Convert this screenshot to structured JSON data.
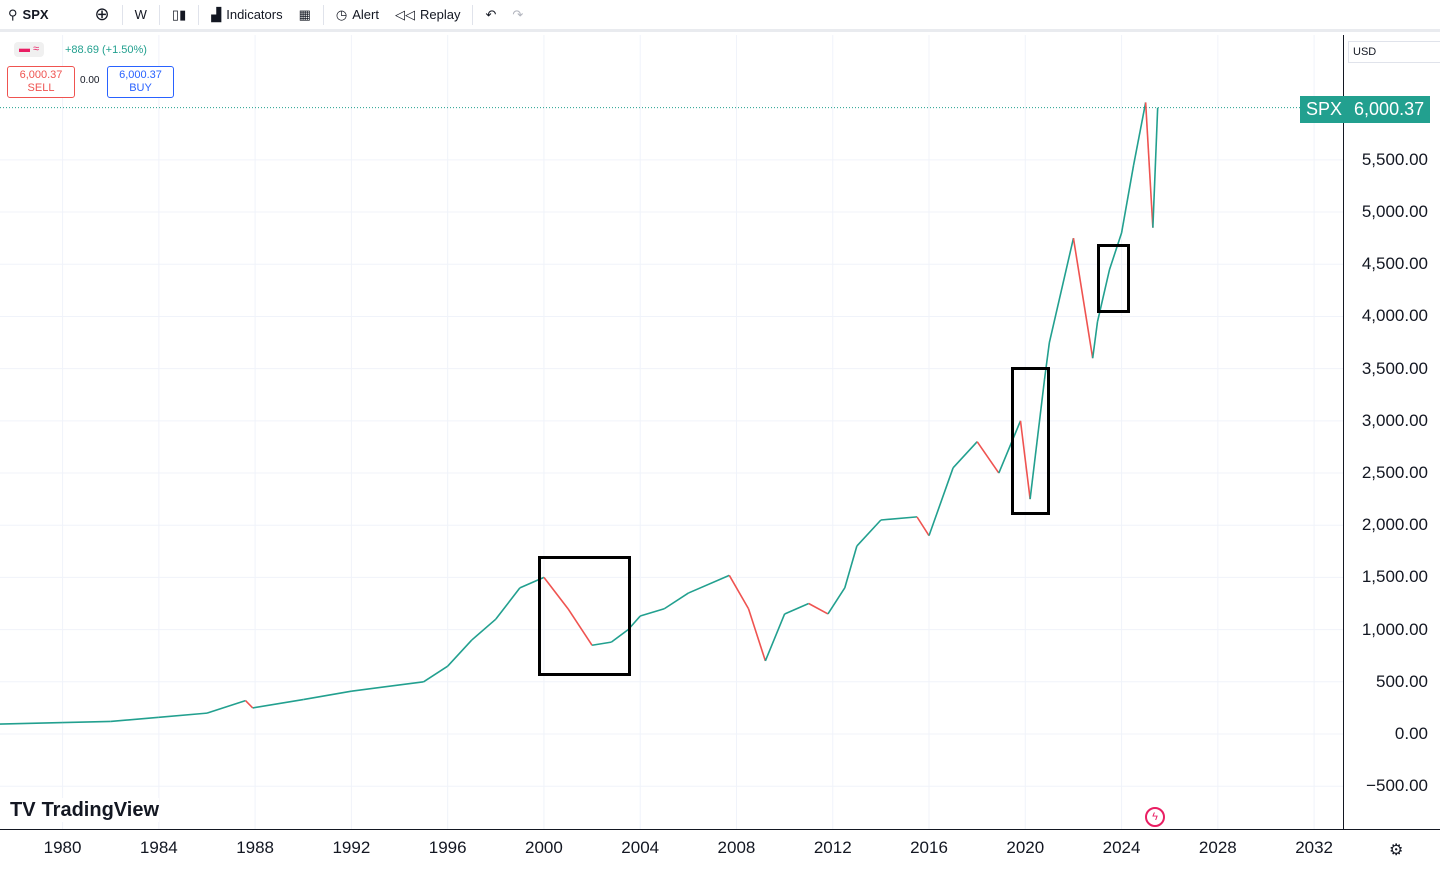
{
  "toolbar": {
    "symbol": "SPX",
    "interval": "W",
    "indicators": "Indicators",
    "alert": "Alert",
    "replay": "Replay"
  },
  "legend": {
    "change": "+88.69 (+1.50%)",
    "sell_price": "6,000.37",
    "sell_label": "SELL",
    "spread": "0.00",
    "buy_price": "6,000.37",
    "buy_label": "BUY"
  },
  "currency": "USD",
  "price_tag": {
    "symbol": "SPX",
    "price": "6,000.37"
  },
  "brand": "TradingView",
  "colors": {
    "up": "#22a08f",
    "down": "#ef5350",
    "tag": "#22a08f"
  },
  "chart_data": {
    "type": "line",
    "title": "SPX",
    "xlabel": "",
    "ylabel": "USD",
    "xlim": [
      1977.4,
      2033.2
    ],
    "ylim": [
      -910,
      6696
    ],
    "x_ticks": [
      "1980",
      "1984",
      "1988",
      "1992",
      "1996",
      "2000",
      "2004",
      "2008",
      "2012",
      "2016",
      "2020",
      "2024",
      "2028",
      "2032"
    ],
    "y_ticks": [
      "5,500.00",
      "5,000.00",
      "4,500.00",
      "4,000.00",
      "3,500.00",
      "3,000.00",
      "2,500.00",
      "2,000.00",
      "1,500.00",
      "1,000.00",
      "500.00",
      "0.00",
      "−500.00"
    ],
    "series": [
      {
        "name": "SPX",
        "x": [
          1977.4,
          1980,
          1982,
          1984,
          1986,
          1987.6,
          1987.9,
          1990,
          1992,
          1995,
          1996,
          1997,
          1998,
          1999,
          2000,
          2001,
          2002,
          2002.8,
          2003.5,
          2004,
          2005,
          2006,
          2007.7,
          2008.5,
          2009.2,
          2010,
          2011,
          2011.8,
          2012.5,
          2013,
          2014,
          2015.5,
          2016,
          2017,
          2018,
          2018.9,
          2019.8,
          2020.2,
          2020.8,
          2021,
          2022,
          2022.8,
          2023,
          2023.5,
          2024,
          2024.5,
          2025,
          2025.3,
          2025.5
        ],
        "y": [
          95,
          110,
          120,
          160,
          200,
          320,
          250,
          330,
          410,
          500,
          650,
          900,
          1100,
          1400,
          1500,
          1200,
          850,
          880,
          1000,
          1130,
          1200,
          1350,
          1520,
          1200,
          700,
          1150,
          1250,
          1150,
          1400,
          1800,
          2050,
          2080,
          1900,
          2550,
          2800,
          2500,
          3000,
          2250,
          3400,
          3750,
          4750,
          3600,
          3950,
          4450,
          4800,
          5450,
          6050,
          4850,
          6000
        ]
      }
    ],
    "annotations": [
      "box 2000-2003",
      "box 2020",
      "box 2023"
    ]
  }
}
